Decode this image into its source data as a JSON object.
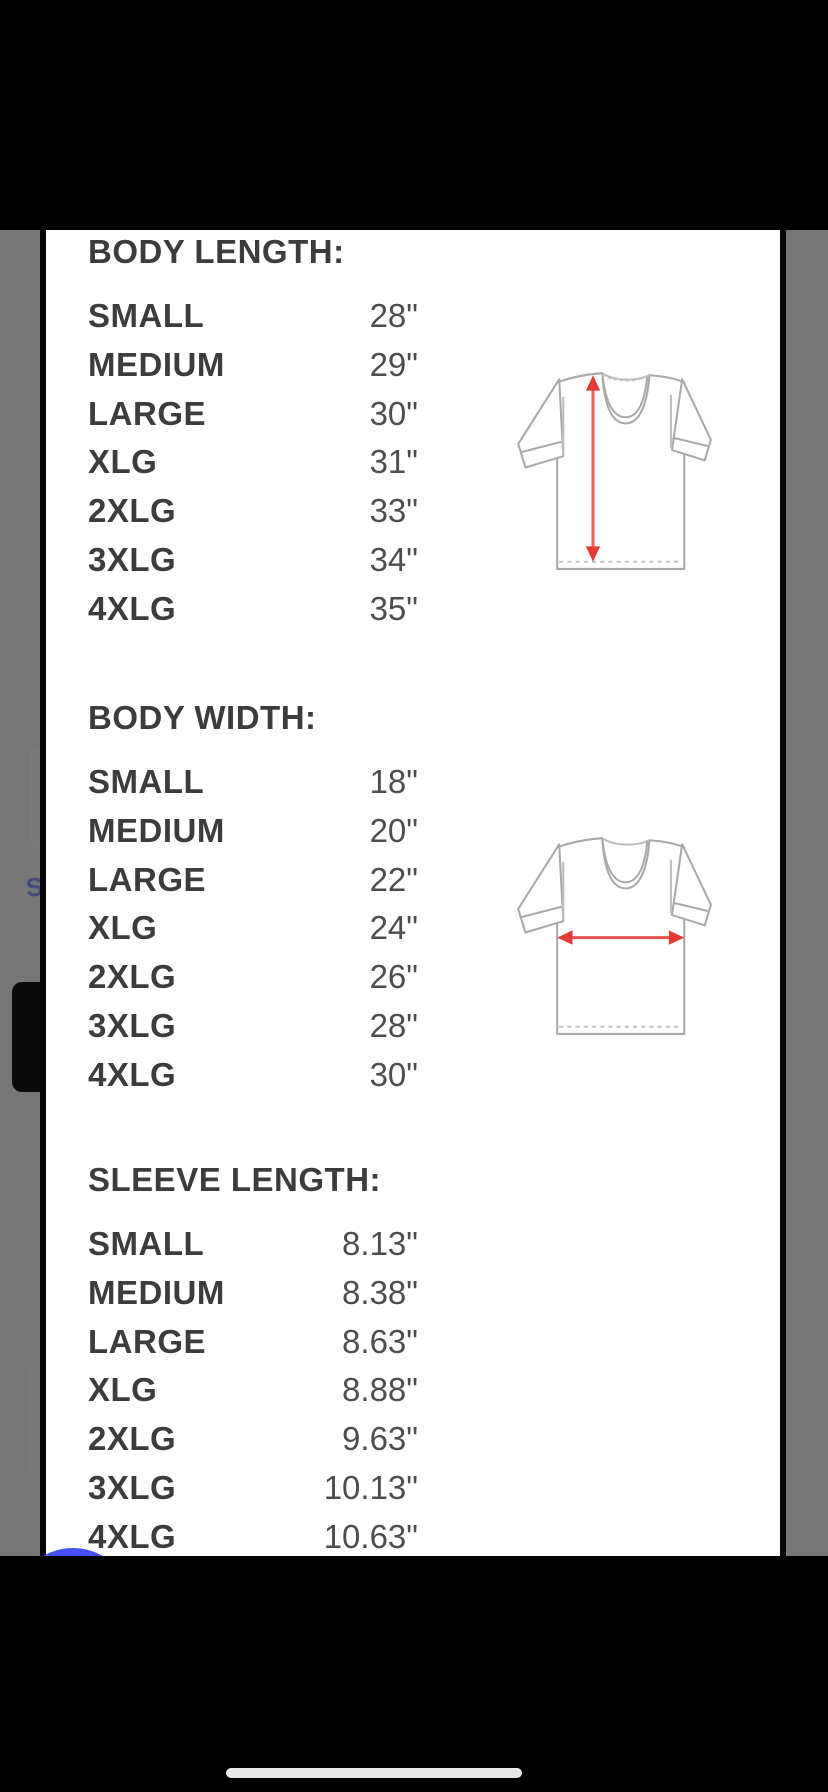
{
  "colors": {
    "accent_red": "#e23b35",
    "arrow_line_red": "#ef6661",
    "chat_blue": "#4353f5",
    "backdrop_gray": "#7b7b7b",
    "shirt_outline_gray": "#a9a9a9"
  },
  "background": {
    "link_fragment": "S"
  },
  "modal": {
    "close_glyph": "✕",
    "sections": [
      {
        "heading": "BODY LENGTH:",
        "illustration": "tshirt-vertical-arrow",
        "rows": [
          {
            "label": "SMALL",
            "value": "28\""
          },
          {
            "label": "MEDIUM",
            "value": "29\""
          },
          {
            "label": "LARGE",
            "value": "30\""
          },
          {
            "label": "XLG",
            "value": "31\""
          },
          {
            "label": "2XLG",
            "value": "33\""
          },
          {
            "label": "3XLG",
            "value": "34\""
          },
          {
            "label": "4XLG",
            "value": "35\""
          }
        ]
      },
      {
        "heading": "BODY WIDTH:",
        "illustration": "tshirt-horizontal-arrow",
        "rows": [
          {
            "label": "SMALL",
            "value": "18\""
          },
          {
            "label": "MEDIUM",
            "value": "20\""
          },
          {
            "label": "LARGE",
            "value": "22\""
          },
          {
            "label": "XLG",
            "value": "24\""
          },
          {
            "label": "2XLG",
            "value": "26\""
          },
          {
            "label": "3XLG",
            "value": "28\""
          },
          {
            "label": "4XLG",
            "value": "30\""
          }
        ]
      },
      {
        "heading": "SLEEVE LENGTH:",
        "illustration": "none",
        "rows": [
          {
            "label": "SMALL",
            "value": "8.13\""
          },
          {
            "label": "MEDIUM",
            "value": "8.38\""
          },
          {
            "label": "LARGE",
            "value": "8.63\""
          },
          {
            "label": "XLG",
            "value": "8.88\""
          },
          {
            "label": "2XLG",
            "value": "9.63\""
          },
          {
            "label": "3XLG",
            "value": "10.13\""
          },
          {
            "label": "4XLG",
            "value": "10.63\""
          }
        ]
      }
    ]
  }
}
